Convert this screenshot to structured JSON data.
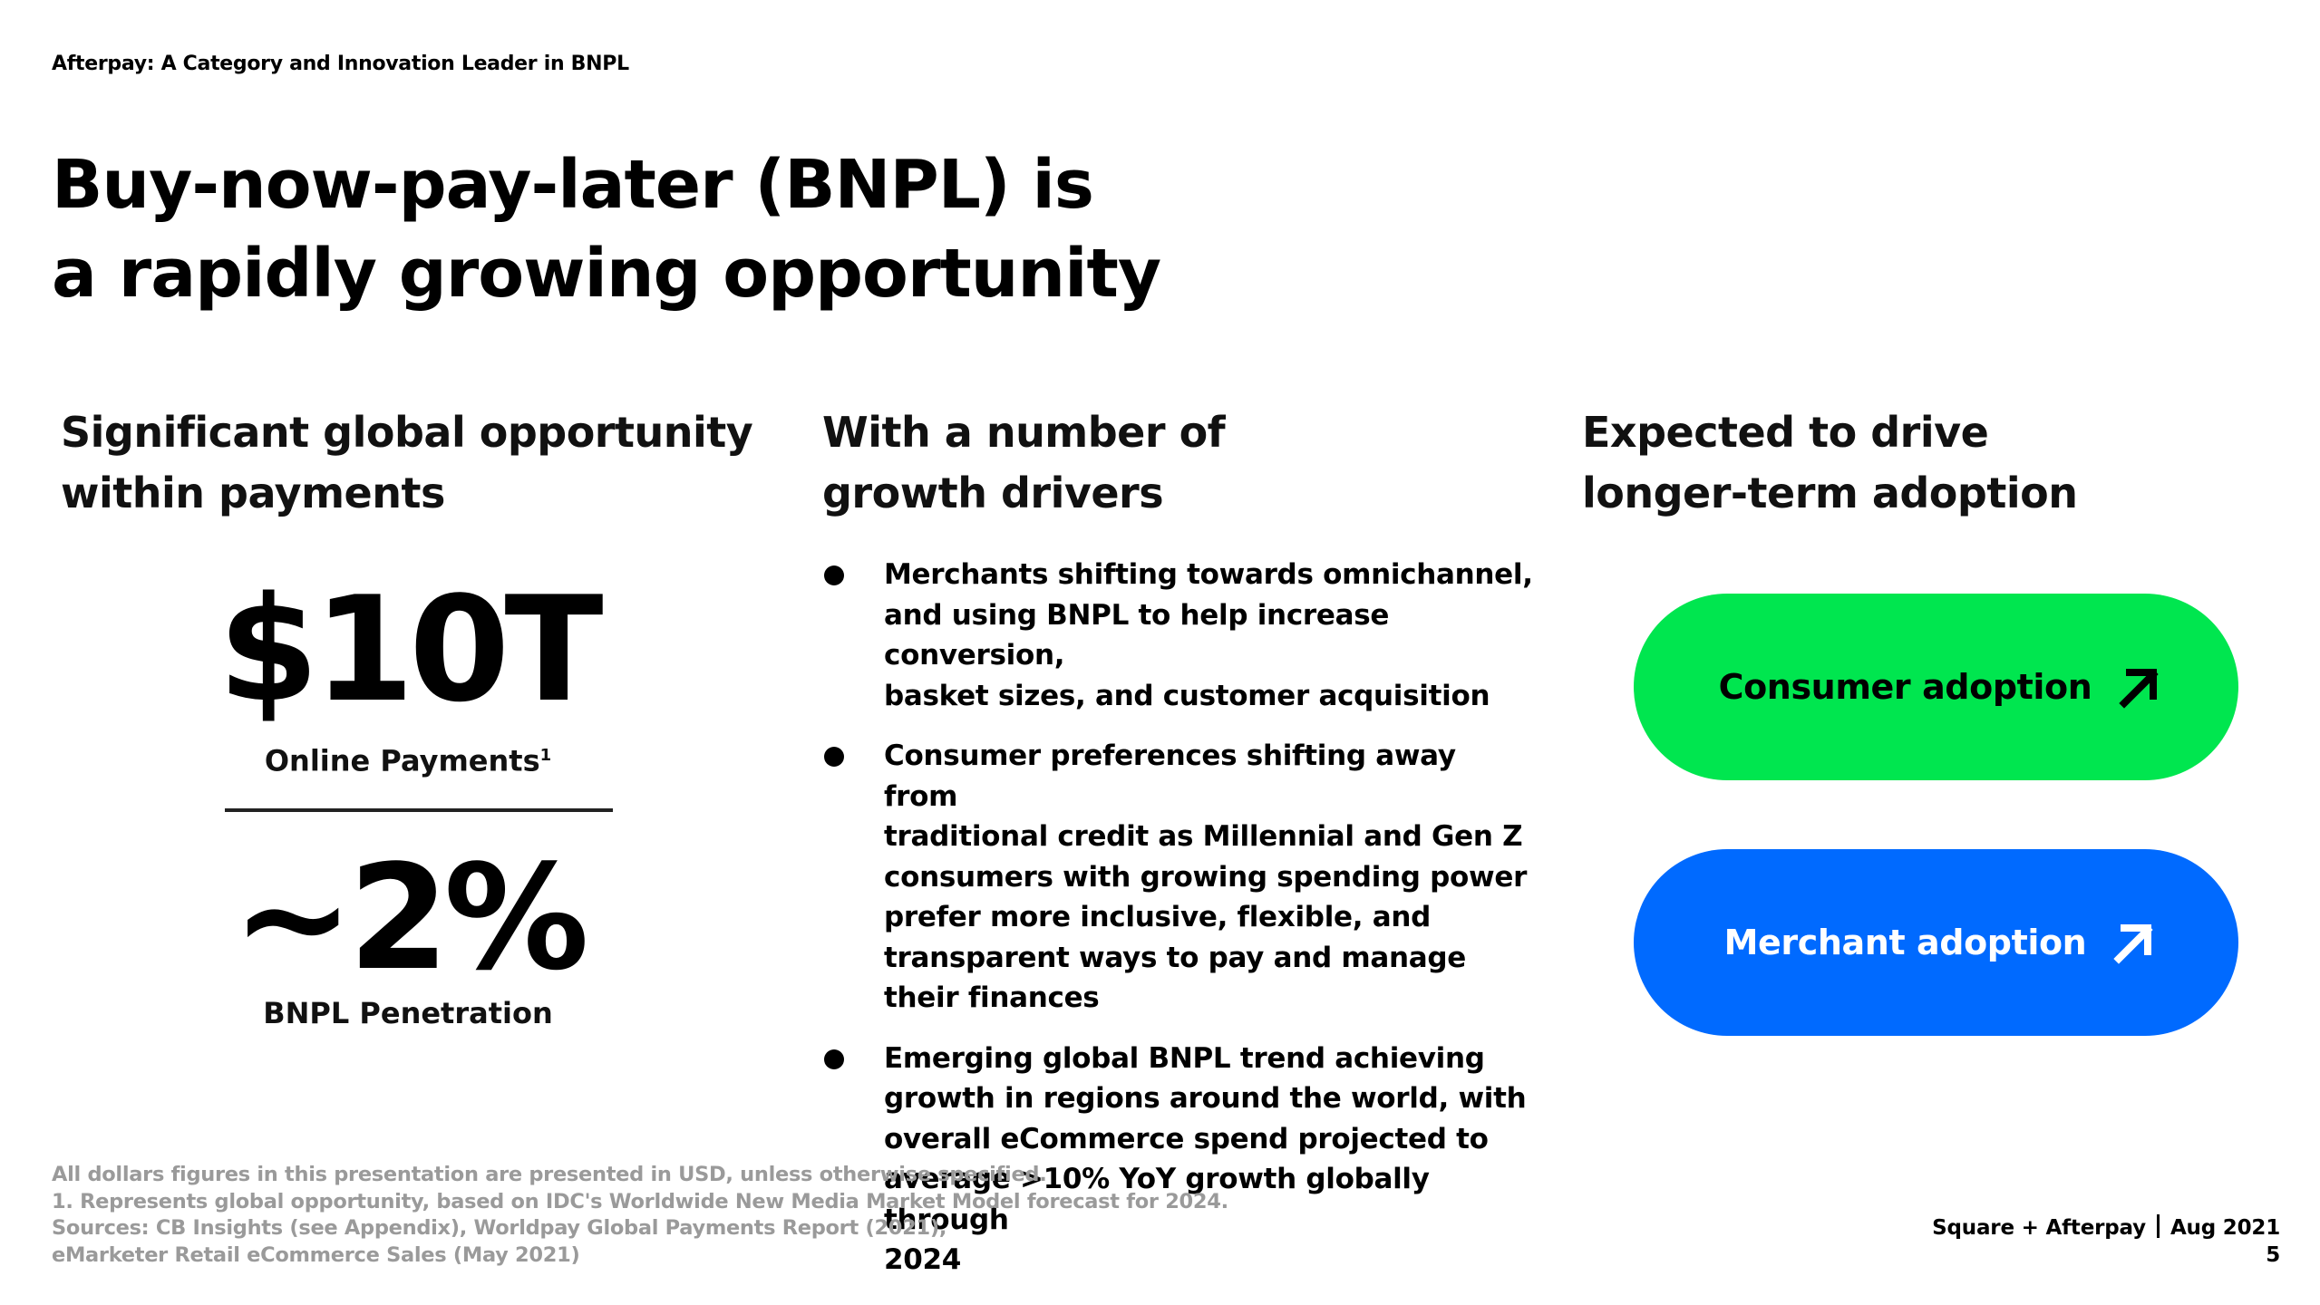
{
  "eyebrow": "Afterpay: A Category and Innovation Leader in BNPL",
  "headline": {
    "line1": "Buy-now-pay-later (BNPL) is",
    "line2": "a rapidly growing opportunity"
  },
  "columns": {
    "left": {
      "heading_line1": "Significant global opportunity",
      "heading_line2": "within payments",
      "stat1": {
        "value": "$10T",
        "label": "Online Payments",
        "footnote_mark": "1"
      },
      "stat2": {
        "value": "~2%",
        "label": "BNPL Penetration"
      }
    },
    "middle": {
      "heading_line1": "With a number of",
      "heading_line2": "growth drivers",
      "bullets": [
        {
          "lines": [
            "Merchants shifting towards omnichannel,",
            "and using BNPL to help increase conversion,",
            "basket sizes, and customer acquisition"
          ]
        },
        {
          "lines": [
            "Consumer preferences shifting away from",
            "traditional credit as Millennial and Gen Z",
            "consumers with growing spending power",
            "prefer more inclusive, flexible, and",
            "transparent ways to pay and manage",
            "their finances"
          ]
        },
        {
          "lines": [
            "Emerging global BNPL trend achieving",
            "growth in regions around the world, with",
            "overall eCommerce spend projected to",
            "average >10% YoY growth globally through",
            "2024"
          ]
        }
      ]
    },
    "right": {
      "heading_line1": "Expected to drive",
      "heading_line2": "longer-term adoption",
      "pills": [
        {
          "label": "Consumer adoption",
          "bg": "#00e64f",
          "fg": "#000000",
          "icon": "arrow-up-right-icon"
        },
        {
          "label": "Merchant adoption",
          "bg": "#006aff",
          "fg": "#ffffff",
          "icon": "arrow-up-right-icon"
        }
      ]
    }
  },
  "footnotes": [
    "All dollars figures in this presentation are presented in USD, unless otherwise specified.",
    "1. Represents global opportunity, based on IDC's Worldwide New Media Market Model forecast for 2024.",
    "Sources: CB Insights (see Appendix), Worldpay Global Payments Report (2021),",
    "eMarketer Retail eCommerce Sales (May 2021)"
  ],
  "footer": {
    "brand": "Square + Afterpay",
    "date": "Aug 2021",
    "page_number": "5"
  },
  "colors": {
    "consumer_green": "#00e64f",
    "merchant_blue": "#006aff",
    "footnote_gray": "#9a9a9a"
  }
}
